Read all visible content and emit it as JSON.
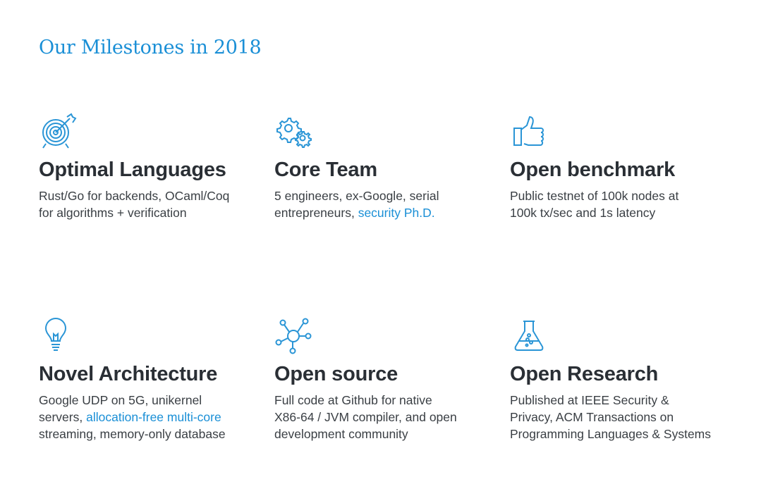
{
  "title": "Our Milestones in 2018",
  "accent_color": "#1a8fd6",
  "items": [
    {
      "icon": "target-icon",
      "heading": "Optimal Languages",
      "lines": [
        [
          {
            "text": "Rust/Go for backends, OCaml/Coq"
          }
        ],
        [
          {
            "text": "for algorithms + verification"
          }
        ]
      ]
    },
    {
      "icon": "gears-icon",
      "heading": "Core Team",
      "lines": [
        [
          {
            "text": "5 engineers, ex-Google, serial"
          }
        ],
        [
          {
            "text": "entrepreneurs, "
          },
          {
            "text": "security Ph.D.",
            "link": true
          }
        ]
      ]
    },
    {
      "icon": "thumbs-up-icon",
      "heading": "Open benchmark",
      "lines": [
        [
          {
            "text": "Public testnet of 100k nodes at"
          }
        ],
        [
          {
            "text": "100k tx/sec and 1s latency"
          }
        ]
      ]
    },
    {
      "icon": "lightbulb-icon",
      "heading": "Novel Architecture",
      "lines": [
        [
          {
            "text": "Google UDP on 5G, unikernel"
          }
        ],
        [
          {
            "text": "servers, "
          },
          {
            "text": "allocation-free multi-core",
            "link": true
          }
        ],
        [
          {
            "text": "streaming, memory-only database"
          }
        ]
      ]
    },
    {
      "icon": "network-icon",
      "heading": "Open source",
      "lines": [
        [
          {
            "text": "Full code at Github for native"
          }
        ],
        [
          {
            "text": "X86-64 / JVM compiler, and open"
          }
        ],
        [
          {
            "text": "development community"
          }
        ]
      ]
    },
    {
      "icon": "flask-icon",
      "heading": "Open Research",
      "lines": [
        [
          {
            "text": "Published at IEEE Security &"
          }
        ],
        [
          {
            "text": "Privacy, ACM Transactions on"
          }
        ],
        [
          {
            "text": "Programming Languages & Systems"
          }
        ]
      ]
    }
  ]
}
